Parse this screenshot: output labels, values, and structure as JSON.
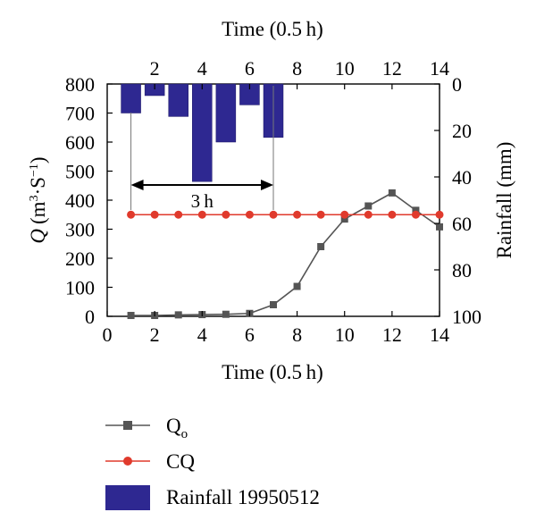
{
  "chart_data": {
    "type": "line",
    "x_label_bottom": "Time (0.5 h)",
    "x_label_top": "Time (0.5 h)",
    "y_label_left_symbol": "Q",
    "y_label_left_unit_open": "(m",
    "y_label_left_sup1": "3",
    "y_label_left_mid": "·S",
    "y_label_left_sup2": "−1",
    "y_label_left_close": ")",
    "y_label_right": "Rainfall (mm)",
    "x_bottom_ticks": [
      "0",
      "2",
      "4",
      "6",
      "8",
      "10",
      "12",
      "14"
    ],
    "x_top_ticks": [
      "2",
      "4",
      "6",
      "8",
      "10",
      "12",
      "14"
    ],
    "y_left_ticks": [
      "0",
      "100",
      "200",
      "300",
      "400",
      "500",
      "600",
      "700",
      "800"
    ],
    "y_right_ticks": [
      "0",
      "20",
      "40",
      "60",
      "80",
      "100"
    ],
    "xlim": [
      0,
      14
    ],
    "ylim_left": [
      0,
      800
    ],
    "ylim_right_inverted": [
      0,
      100
    ],
    "annotation": "3 h",
    "annotation_span": [
      1,
      7
    ],
    "series": [
      {
        "name": "Q",
        "name_sub": "o",
        "marker": "square",
        "color": "#555555",
        "x": [
          1,
          2,
          3,
          4,
          5,
          6,
          7,
          8,
          9,
          10,
          11,
          12,
          13,
          14
        ],
        "y": [
          3,
          3,
          5,
          6,
          7,
          10,
          40,
          103,
          240,
          335,
          380,
          425,
          365,
          308
        ]
      },
      {
        "name": "CQ",
        "marker": "circle",
        "color": "#e03a2c",
        "x": [
          1,
          2,
          3,
          4,
          5,
          6,
          7,
          8,
          9,
          10,
          11,
          12,
          13,
          14
        ],
        "y": [
          350,
          350,
          350,
          350,
          350,
          350,
          350,
          350,
          350,
          350,
          350,
          350,
          350,
          350
        ]
      }
    ],
    "rainfall": {
      "name": "Rainfall 19950512",
      "color": "#2e2891",
      "x": [
        1,
        2,
        3,
        4,
        5,
        6,
        7
      ],
      "values": [
        12.5,
        5,
        14,
        42,
        25,
        9,
        23
      ]
    }
  }
}
